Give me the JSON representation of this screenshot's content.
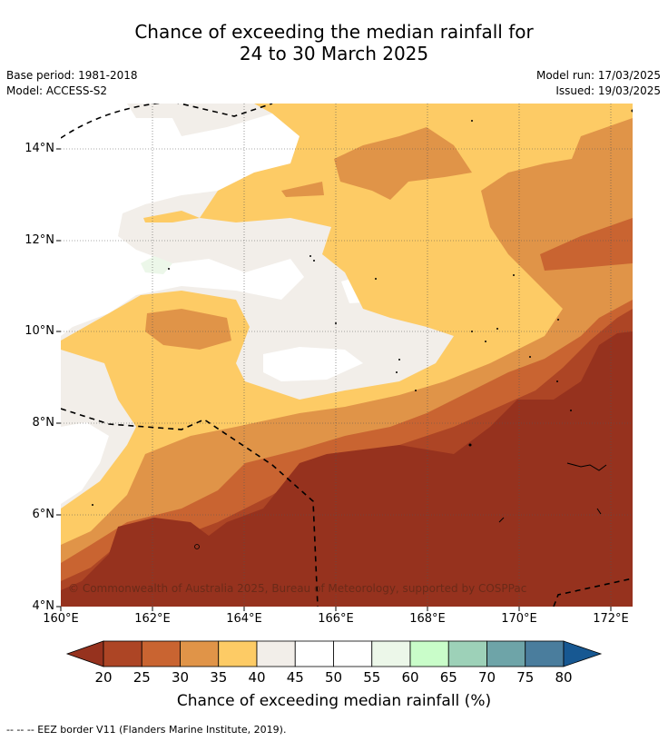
{
  "title_line1": "Chance of exceeding the median rainfall for",
  "title_line2": "24 to 30 March 2025",
  "meta": {
    "base_period": "Base period: 1981-2018",
    "model": "Model: ACCESS-S2",
    "model_run": "Model run: 17/03/2025",
    "issued": "Issued: 19/03/2025"
  },
  "map": {
    "lat_labels": [
      "14°N",
      "12°N",
      "10°N",
      "8°N",
      "6°N",
      "4°N"
    ],
    "lon_labels": [
      "160°E",
      "162°E",
      "164°E",
      "166°E",
      "168°E",
      "170°E",
      "172°E"
    ],
    "copyright": "© Commonwealth of Australia 2025, Bureau of Meteorology, supported by COSPPac"
  },
  "colorbar": {
    "ticks": [
      "20",
      "25",
      "30",
      "35",
      "40",
      "45",
      "50",
      "55",
      "60",
      "65",
      "70",
      "75",
      "80"
    ],
    "colors": [
      "#ad4525",
      "#c96431",
      "#e09448",
      "#fdcb65",
      "#f2eee9",
      "#ffffff",
      "#ffffff",
      "#ecf7e9",
      "#c9fdc9",
      "#9dd1b8",
      "#6ea4a8",
      "#4a7d9d"
    ],
    "under_color": "#96321e",
    "over_color": "#175892",
    "label": "Chance of exceeding median rainfall (%)"
  },
  "footer": "--  --  -- EEZ border V11 (Flanders Marine Institute, 2019)."
}
